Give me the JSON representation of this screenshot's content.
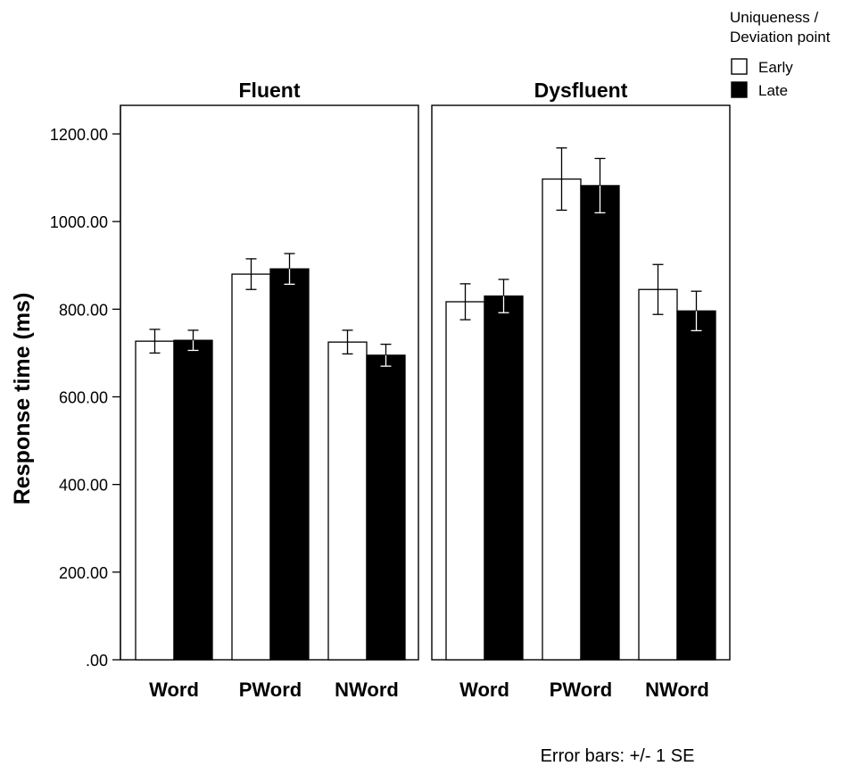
{
  "chart_data": {
    "type": "bar",
    "ylabel": "Response time (ms)",
    "xlabel": "",
    "ylim": [
      0,
      1200
    ],
    "yticks": [
      0,
      200,
      400,
      600,
      800,
      1000,
      1200
    ],
    "ytick_labels": [
      ".00",
      "200.00",
      "400.00",
      "600.00",
      "800.00",
      "1000.00",
      "1200.00"
    ],
    "categories": [
      "Word",
      "PWord",
      "NWord"
    ],
    "grid": false,
    "legend_position": "top-right",
    "legend_title": "Uniqueness / Deviation point",
    "footnote": "Error bars: +/- 1 SE",
    "series_colors": {
      "Early": "#ffffff",
      "Late": "#000000"
    },
    "panels": [
      {
        "title": "Fluent",
        "series": [
          {
            "name": "Early",
            "values": [
              727,
              880,
              725
            ],
            "se": [
              27,
              35,
              27
            ]
          },
          {
            "name": "Late",
            "values": [
              729,
              892,
              695
            ],
            "se": [
              23,
              35,
              25
            ]
          }
        ]
      },
      {
        "title": "Dysfluent",
        "series": [
          {
            "name": "Early",
            "values": [
              817,
              1097,
              845
            ],
            "se": [
              41,
              71,
              57
            ]
          },
          {
            "name": "Late",
            "values": [
              830,
              1082,
              796
            ],
            "se": [
              38,
              62,
              45
            ]
          }
        ]
      }
    ]
  }
}
